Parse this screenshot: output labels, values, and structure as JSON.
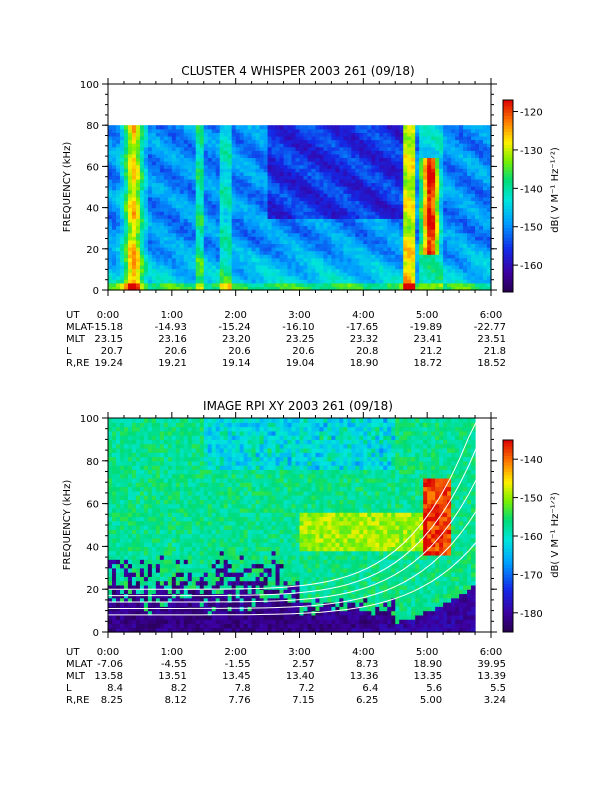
{
  "chart_data": [
    {
      "type": "heatmap",
      "title": "CLUSTER 4 WHISPER 2003 261 (09/18)",
      "ylabel": "FREQUENCY (kHz)",
      "ylim": [
        0,
        100
      ],
      "yticks": [
        "0",
        "20",
        "40",
        "60",
        "80",
        "100"
      ],
      "xlim_hours": [
        0,
        6
      ],
      "colorbar": {
        "label": "dB( V M⁻¹ Hz⁻¹ᐟ²)",
        "range": [
          -167,
          -117
        ],
        "ticks": [
          "-120",
          "-130",
          "-140",
          "-150",
          "-160"
        ]
      },
      "features": [
        {
          "name": "broadband emission",
          "t_start": 0.15,
          "t_end": 0.65,
          "intensity": "high"
        },
        {
          "name": "broadband emission",
          "t_start": 4.65,
          "t_end": 4.8,
          "intensity": "high"
        },
        {
          "name": "emission burst",
          "t_start": 4.95,
          "t_end": 5.2,
          "f_low": 20,
          "f_high": 65,
          "intensity": "high"
        }
      ],
      "ephemeris": {
        "rows": [
          {
            "label": "UT",
            "values": [
              "0:00",
              "1:00",
              "2:00",
              "3:00",
              "4:00",
              "5:00",
              "6:00"
            ]
          },
          {
            "label": "MLAT",
            "values": [
              "-15.18",
              "-14.93",
              "-15.24",
              "-16.10",
              "-17.65",
              "-19.89",
              "-22.77"
            ]
          },
          {
            "label": "MLT",
            "values": [
              "23.15",
              "23.16",
              "23.20",
              "23.25",
              "23.32",
              "23.41",
              "23.51"
            ]
          },
          {
            "label": "L",
            "values": [
              "20.7",
              "20.6",
              "20.6",
              "20.6",
              "20.8",
              "21.2",
              "21.8"
            ]
          },
          {
            "label": "R,RE",
            "values": [
              "19.24",
              "19.21",
              "19.14",
              "19.04",
              "18.90",
              "18.72",
              "18.52"
            ]
          }
        ]
      }
    },
    {
      "type": "heatmap",
      "title": "IMAGE RPI XY 2003 261 (09/18)",
      "ylabel": "FREQUENCY (kHz)",
      "ylim": [
        0,
        100
      ],
      "yticks": [
        "0",
        "20",
        "40",
        "60",
        "80",
        "100"
      ],
      "xlim_hours": [
        0,
        6
      ],
      "colorbar": {
        "label": "dB( V M⁻¹ Hz⁻¹ᐟ²)",
        "range": [
          -185,
          -135
        ],
        "ticks": [
          "-140",
          "-150",
          "-160",
          "-170",
          "-180"
        ]
      },
      "features": [
        {
          "name": "emission burst",
          "t_start": 4.95,
          "t_end": 5.35,
          "f_low": 35,
          "f_high": 70,
          "intensity": "high"
        },
        {
          "name": "enhanced band",
          "t_start": 3.0,
          "t_end": 5.0,
          "f_low": 40,
          "f_high": 55,
          "intensity": "medium"
        }
      ],
      "ephemeris": {
        "rows": [
          {
            "label": "UT",
            "values": [
              "0:00",
              "1:00",
              "2:00",
              "3:00",
              "4:00",
              "5:00",
              "6:00"
            ]
          },
          {
            "label": "MLAT",
            "values": [
              "-7.06",
              "-4.55",
              "-1.55",
              "2.57",
              "8.73",
              "18.90",
              "39.95"
            ]
          },
          {
            "label": "MLT",
            "values": [
              "13.58",
              "13.51",
              "13.45",
              "13.40",
              "13.36",
              "13.35",
              "13.39"
            ]
          },
          {
            "label": "L",
            "values": [
              "8.4",
              "8.2",
              "7.8",
              "7.2",
              "6.4",
              "5.6",
              "5.5"
            ]
          },
          {
            "label": "R,RE",
            "values": [
              "8.25",
              "8.12",
              "7.76",
              "7.15",
              "6.25",
              "5.00",
              "3.24"
            ]
          }
        ]
      }
    }
  ]
}
